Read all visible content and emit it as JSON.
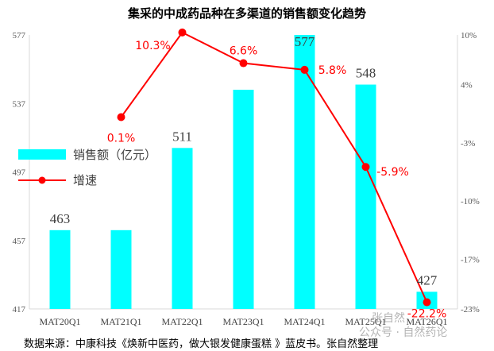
{
  "title": "集采的中成药品种在多渠道的销售额变化趋势",
  "source": "数据来源：中康科技《焕新中医药，做大银发健康蛋糕 》蓝皮书。张自然整理",
  "watermark": "公众号 · 自然药论",
  "watermark2": "张自然",
  "colors": {
    "bar": "#00ffff",
    "line": "#ff0000",
    "axis": "#d9d9d9"
  },
  "chart_data": {
    "type": "bar+line",
    "categories": [
      "MAT20Q1",
      "MAT21Q1",
      "MAT22Q1",
      "MAT23Q1",
      "MAT24Q1",
      "MAT25Q1",
      "MAT26Q1"
    ],
    "series": [
      {
        "name": "销售额（亿元）",
        "type": "bar",
        "axis": "left",
        "values": [
          463,
          463,
          511,
          545,
          577,
          548,
          427
        ],
        "labels": [
          "463",
          "",
          "511",
          "",
          "577",
          "548",
          "427"
        ]
      },
      {
        "name": "增速",
        "type": "line",
        "axis": "right",
        "values": [
          null,
          0.1,
          10.3,
          6.6,
          5.8,
          -5.9,
          -22.2
        ],
        "labels": [
          "",
          "0.1%",
          "10.3%",
          "6.6%",
          "5.8%",
          "-5.9%",
          "-22.2%"
        ]
      }
    ],
    "left_axis": {
      "ylim": [
        417,
        577
      ],
      "ticks": [
        "417",
        "457",
        "497",
        "537",
        "577"
      ]
    },
    "right_axis": {
      "ylim": [
        -23,
        10
      ],
      "ticks": [
        "-23%",
        "-17%",
        "-10%",
        "-3%",
        "4%",
        "10%"
      ],
      "tick_values": [
        -23,
        -17,
        -10,
        -3,
        4,
        10
      ]
    },
    "legend_position": "left-middle",
    "grid": false
  }
}
